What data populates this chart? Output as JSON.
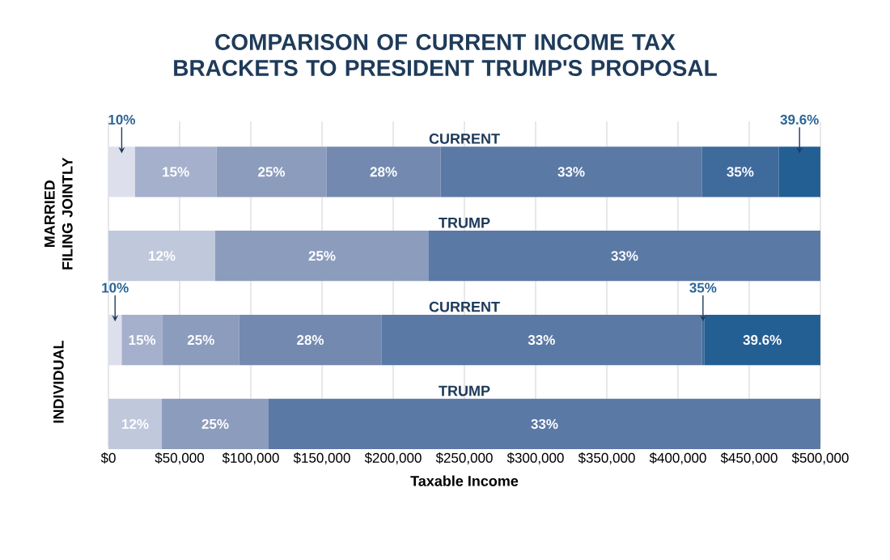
{
  "chart_data": {
    "type": "bar",
    "orientation": "horizontal",
    "stacked": true,
    "title": "COMPARISON OF CURRENT INCOME TAX BRACKETS TO PRESIDENT TRUMP'S PROPOSAL",
    "xlabel": "Taxable Income",
    "categories": [
      "CURRENT",
      "TRUMP",
      "CURRENT",
      "TRUMP"
    ],
    "series": [
      {
        "name": "10%",
        "color": "#dde0ec",
        "values": [
          18650,
          null,
          9325,
          null
        ]
      },
      {
        "name": "12%",
        "color": "#c0c8dc",
        "values": [
          null,
          75000,
          null,
          37500
        ]
      },
      {
        "name": "15%",
        "color": "#a5b0cc",
        "values": [
          57250,
          null,
          28625,
          null
        ]
      },
      {
        "name": "25%",
        "color": "#8c9cbd",
        "values": [
          77200,
          150000,
          53950,
          75000
        ]
      },
      {
        "name": "28%",
        "color": "#7489b0",
        "values": [
          80250,
          null,
          99750,
          null
        ]
      },
      {
        "name": "33%",
        "color": "#5b79a5",
        "values": [
          183350,
          275000,
          225050,
          387500
        ]
      },
      {
        "name": "35%",
        "color": "#3f6a9c",
        "values": [
          54000,
          null,
          1700,
          null
        ]
      },
      {
        "name": "39.6%",
        "color": "#245f94",
        "values": [
          29300,
          null,
          81600,
          null
        ]
      }
    ],
    "xlim": [
      0,
      500000
    ],
    "xticks": [
      {
        "value": 0,
        "label": "$0"
      },
      {
        "value": 50000,
        "label": "$50,000"
      },
      {
        "value": 100000,
        "label": "$100,000"
      },
      {
        "value": 150000,
        "label": "$150,000"
      },
      {
        "value": 200000,
        "label": "$200,000"
      },
      {
        "value": 250000,
        "label": "$250,000"
      },
      {
        "value": 300000,
        "label": "$300,000"
      },
      {
        "value": 350000,
        "label": "$350,000"
      },
      {
        "value": 400000,
        "label": "$400,000"
      },
      {
        "value": 450000,
        "label": "$450,000"
      },
      {
        "value": 500000,
        "label": "$500,000"
      }
    ],
    "grid": "x",
    "annotations": [
      "MARRIED FILING JOINTLY",
      "INDIVIDUAL"
    ]
  }
}
